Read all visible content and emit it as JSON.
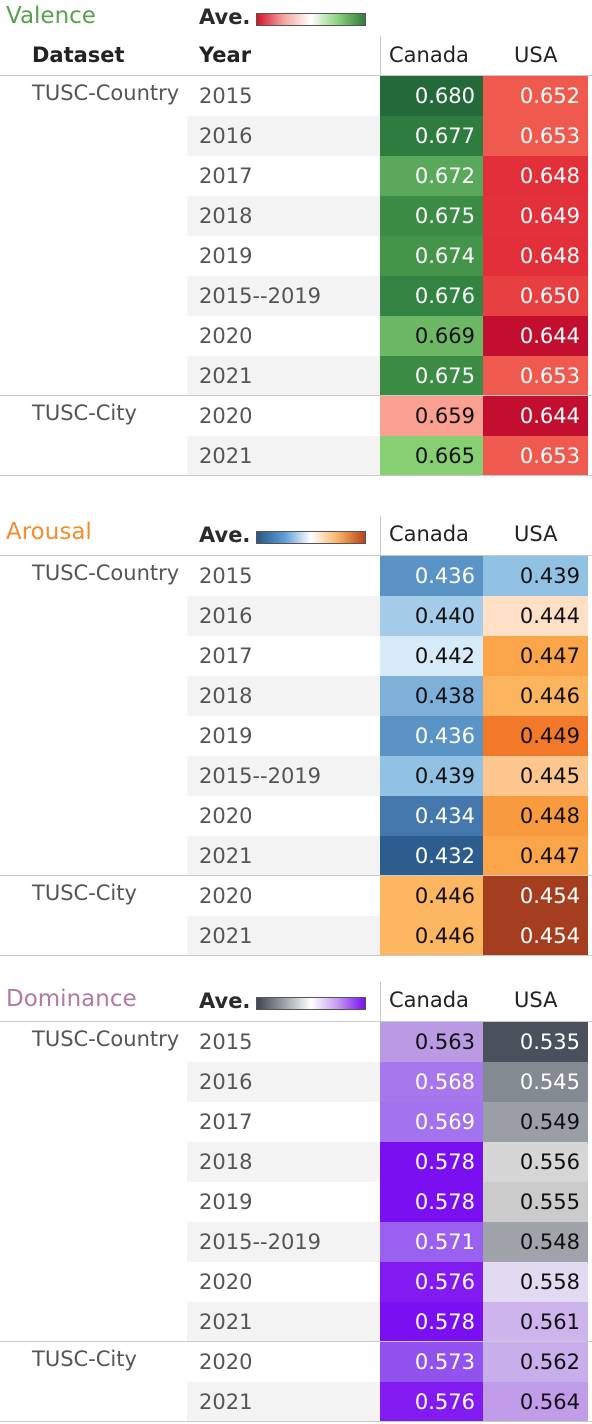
{
  "headers": {
    "dataset": "Dataset",
    "year": "Year",
    "canada": "Canada",
    "usa": "USA",
    "ave": "Ave."
  },
  "groups": [
    {
      "name": "TUSC-Country",
      "rows": [
        "2015",
        "2016",
        "2017",
        "2018",
        "2019",
        "2015--2019",
        "2020",
        "2021"
      ]
    },
    {
      "name": "TUSC-City",
      "rows": [
        "2020",
        "2021"
      ]
    }
  ],
  "chart_data": [
    {
      "type": "table",
      "title": "Valence",
      "title_color": "#59a14f",
      "legend_gradient": [
        "#d0152d",
        "#f4a6a0",
        "#ffffff",
        "#8cd17d",
        "#2e7d3b"
      ],
      "columns": [
        "Canada",
        "USA"
      ],
      "values": [
        [
          "0.680",
          "0.652"
        ],
        [
          "0.677",
          "0.653"
        ],
        [
          "0.672",
          "0.648"
        ],
        [
          "0.675",
          "0.649"
        ],
        [
          "0.674",
          "0.648"
        ],
        [
          "0.676",
          "0.650"
        ],
        [
          "0.669",
          "0.644"
        ],
        [
          "0.675",
          "0.653"
        ],
        [
          "0.659",
          "0.644"
        ],
        [
          "0.665",
          "0.653"
        ]
      ],
      "colors": [
        [
          "#24693a",
          "#f0594d"
        ],
        [
          "#2f7d3e",
          "#f0594d"
        ],
        [
          "#5aa85a",
          "#e32f3a"
        ],
        [
          "#3c8c45",
          "#e3313c"
        ],
        [
          "#449449",
          "#e32f3a"
        ],
        [
          "#338342",
          "#e83f40"
        ],
        [
          "#6cb865",
          "#c20e2f"
        ],
        [
          "#3c8c45",
          "#f0594d"
        ],
        [
          "#f9a090",
          "#c20e2f"
        ],
        [
          "#87cf73",
          "#f0594d"
        ]
      ],
      "text_colors": [
        [
          "#ffffff",
          "#ffffff"
        ],
        [
          "#ffffff",
          "#ffffff"
        ],
        [
          "#ffffff",
          "#ffffff"
        ],
        [
          "#ffffff",
          "#ffffff"
        ],
        [
          "#ffffff",
          "#ffffff"
        ],
        [
          "#ffffff",
          "#ffffff"
        ],
        [
          "#111111",
          "#ffffff"
        ],
        [
          "#ffffff",
          "#ffffff"
        ],
        [
          "#111111",
          "#ffffff"
        ],
        [
          "#111111",
          "#ffffff"
        ]
      ]
    },
    {
      "type": "table",
      "title": "Arousal",
      "title_color": "#f28e2b",
      "legend_gradient": [
        "#2a5783",
        "#5b9bd5",
        "#ffffff",
        "#f7b267",
        "#b6461b"
      ],
      "columns": [
        "Canada",
        "USA"
      ],
      "values": [
        [
          "0.436",
          "0.439"
        ],
        [
          "0.440",
          "0.444"
        ],
        [
          "0.442",
          "0.447"
        ],
        [
          "0.438",
          "0.446"
        ],
        [
          "0.436",
          "0.449"
        ],
        [
          "0.439",
          "0.445"
        ],
        [
          "0.434",
          "0.448"
        ],
        [
          "0.432",
          "0.447"
        ],
        [
          "0.446",
          "0.454"
        ],
        [
          "0.446",
          "0.454"
        ]
      ],
      "colors": [
        [
          "#5a93c6",
          "#92c2e3"
        ],
        [
          "#a5cce9",
          "#fde0c6"
        ],
        [
          "#d7eaf8",
          "#fba54a"
        ],
        [
          "#7eb0d9",
          "#fcb45e"
        ],
        [
          "#5a93c6",
          "#f2792a"
        ],
        [
          "#92c2e3",
          "#fcc68e"
        ],
        [
          "#4477ab",
          "#f89a3e"
        ],
        [
          "#2d5d8e",
          "#fba54a"
        ],
        [
          "#fdb661",
          "#a43e1f"
        ],
        [
          "#fdb661",
          "#a43e1f"
        ]
      ],
      "text_colors": [
        [
          "#ffffff",
          "#111111"
        ],
        [
          "#111111",
          "#111111"
        ],
        [
          "#111111",
          "#111111"
        ],
        [
          "#111111",
          "#111111"
        ],
        [
          "#ffffff",
          "#111111"
        ],
        [
          "#111111",
          "#111111"
        ],
        [
          "#ffffff",
          "#111111"
        ],
        [
          "#ffffff",
          "#111111"
        ],
        [
          "#111111",
          "#ffffff"
        ],
        [
          "#111111",
          "#ffffff"
        ]
      ]
    },
    {
      "type": "table",
      "title": "Dominance",
      "title_color": "#b07aa1",
      "legend_gradient": [
        "#3f4650",
        "#9aa0a6",
        "#ffffff",
        "#c39af2",
        "#7a0ff2"
      ],
      "columns": [
        "Canada",
        "USA"
      ],
      "values": [
        [
          "0.563",
          "0.535"
        ],
        [
          "0.568",
          "0.545"
        ],
        [
          "0.569",
          "0.549"
        ],
        [
          "0.578",
          "0.556"
        ],
        [
          "0.578",
          "0.555"
        ],
        [
          "0.571",
          "0.548"
        ],
        [
          "0.576",
          "0.558"
        ],
        [
          "0.578",
          "0.561"
        ],
        [
          "0.573",
          "0.562"
        ],
        [
          "0.576",
          "0.564"
        ]
      ],
      "colors": [
        [
          "#b99ae3",
          "#4a515c"
        ],
        [
          "#a777ee",
          "#848a92"
        ],
        [
          "#a372ee",
          "#9a9fa5"
        ],
        [
          "#7a0ff2",
          "#d6d6d6"
        ],
        [
          "#7a0ff2",
          "#cbcbcb"
        ],
        [
          "#9a60ef",
          "#a0a4aa"
        ],
        [
          "#821bf2",
          "#e2daf0"
        ],
        [
          "#7a0ff2",
          "#cdb4ed"
        ],
        [
          "#9152f0",
          "#c9aeec"
        ],
        [
          "#821bf2",
          "#c09ce9"
        ]
      ],
      "text_colors": [
        [
          "#111111",
          "#ffffff"
        ],
        [
          "#ffffff",
          "#ffffff"
        ],
        [
          "#ffffff",
          "#111111"
        ],
        [
          "#ffffff",
          "#111111"
        ],
        [
          "#ffffff",
          "#111111"
        ],
        [
          "#ffffff",
          "#111111"
        ],
        [
          "#ffffff",
          "#111111"
        ],
        [
          "#ffffff",
          "#111111"
        ],
        [
          "#ffffff",
          "#111111"
        ],
        [
          "#ffffff",
          "#111111"
        ]
      ]
    }
  ]
}
